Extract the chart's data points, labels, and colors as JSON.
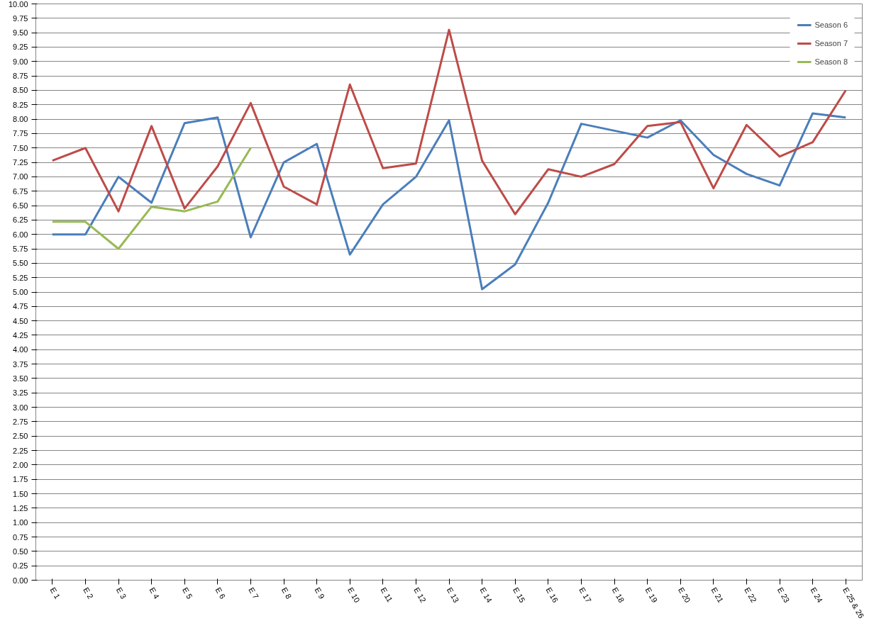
{
  "chart_data": {
    "type": "line",
    "categories": [
      "E 1",
      "E 2",
      "E 3",
      "E 4",
      "E 5",
      "E 6",
      "E 7",
      "E 8",
      "E 9",
      "E 10",
      "E 11",
      "E 12",
      "E 13",
      "E 14",
      "E 15",
      "E 16",
      "E 17",
      "E 18",
      "E 19",
      "E 20",
      "E 21",
      "E 22",
      "E 23",
      "E 24",
      "E 25 & 26"
    ],
    "series": [
      {
        "name": "Season 6",
        "color": "#4a7ebb",
        "values": [
          6.0,
          6.0,
          7.0,
          6.55,
          7.93,
          8.03,
          5.95,
          7.25,
          7.57,
          5.65,
          6.52,
          7.0,
          7.98,
          5.05,
          5.48,
          6.55,
          7.92,
          7.8,
          7.68,
          7.98,
          7.38,
          7.05,
          6.85,
          8.1,
          8.03
        ]
      },
      {
        "name": "Season 7",
        "color": "#be4b48",
        "values": [
          7.28,
          7.5,
          6.4,
          7.88,
          6.45,
          7.18,
          8.28,
          6.83,
          6.52,
          8.6,
          7.15,
          7.23,
          9.55,
          7.28,
          6.35,
          7.13,
          7.0,
          7.22,
          7.88,
          7.95,
          6.8,
          7.9,
          7.35,
          7.6,
          8.5
        ]
      },
      {
        "name": "Season 8",
        "color": "#98b954",
        "values": [
          6.22,
          6.22,
          5.75,
          6.48,
          6.4,
          6.57,
          7.5,
          null,
          null,
          null,
          null,
          null,
          null,
          null,
          null,
          null,
          null,
          null,
          null,
          null,
          null,
          null,
          null,
          null,
          null
        ]
      }
    ],
    "ylim": [
      0,
      10
    ],
    "yticks": [
      {
        "value": 0,
        "label": "0.00"
      },
      {
        "value": 0.25,
        "label": "0.25"
      },
      {
        "value": 0.5,
        "label": "0.50"
      },
      {
        "value": 0.75,
        "label": "0.75"
      },
      {
        "value": 1,
        "label": "1.00"
      },
      {
        "value": 1.25,
        "label": "1.25"
      },
      {
        "value": 1.5,
        "label": "1.50"
      },
      {
        "value": 1.75,
        "label": "1.75"
      },
      {
        "value": 2,
        "label": "2.00"
      },
      {
        "value": 2.25,
        "label": "2.25"
      },
      {
        "value": 2.5,
        "label": "2.50"
      },
      {
        "value": 2.75,
        "label": "2.75"
      },
      {
        "value": 3,
        "label": "3.00"
      },
      {
        "value": 3.25,
        "label": "3.25"
      },
      {
        "value": 3.5,
        "label": "3.50"
      },
      {
        "value": 3.75,
        "label": "3.75"
      },
      {
        "value": 4,
        "label": "4.00"
      },
      {
        "value": 4.25,
        "label": "4.25"
      },
      {
        "value": 4.5,
        "label": "4.50"
      },
      {
        "value": 4.75,
        "label": "4.75"
      },
      {
        "value": 5,
        "label": "5.00"
      },
      {
        "value": 5.25,
        "label": "5.25"
      },
      {
        "value": 5.5,
        "label": "5.50"
      },
      {
        "value": 5.75,
        "label": "5.75"
      },
      {
        "value": 6,
        "label": "6.00"
      },
      {
        "value": 6.25,
        "label": "6.25"
      },
      {
        "value": 6.5,
        "label": "6.50"
      },
      {
        "value": 6.75,
        "label": "6.75"
      },
      {
        "value": 7,
        "label": "7.00"
      },
      {
        "value": 7.25,
        "label": "7.25"
      },
      {
        "value": 7.5,
        "label": "7.50"
      },
      {
        "value": 7.75,
        "label": "7.75"
      },
      {
        "value": 8,
        "label": "8.00"
      },
      {
        "value": 8.25,
        "label": "8.25"
      },
      {
        "value": 8.5,
        "label": "8.50"
      },
      {
        "value": 8.75,
        "label": "8.75"
      },
      {
        "value": 9,
        "label": "9.00"
      },
      {
        "value": 9.25,
        "label": "9.25"
      },
      {
        "value": 9.5,
        "label": "9.50"
      },
      {
        "value": 9.75,
        "label": "9.75"
      },
      {
        "value": 10,
        "label": "10.00"
      }
    ],
    "grid": "y",
    "legend": "top right",
    "marker": "none",
    "line_style": "solid"
  }
}
